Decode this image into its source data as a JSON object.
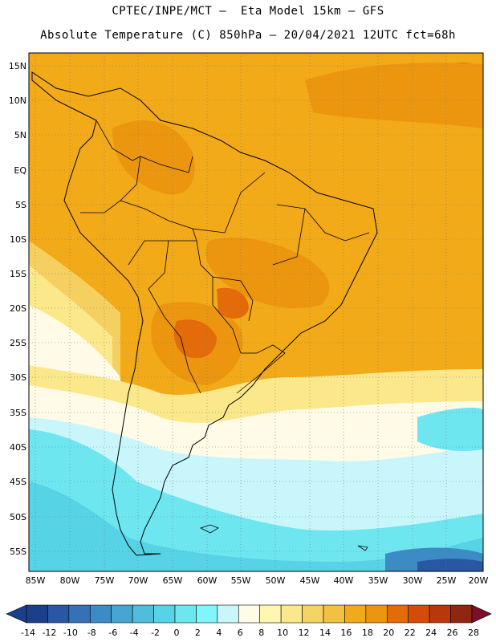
{
  "header": {
    "line1": "CPTEC/INPE/MCT –  Eta Model 15km – GFS",
    "line2": "Absolute Temperature (C) 850hPa – 20/04/2021 12UTC fct=68h"
  },
  "axes": {
    "lat_labels": [
      "15N",
      "10N",
      "5N",
      "EQ",
      "5S",
      "10S",
      "15S",
      "20S",
      "25S",
      "30S",
      "35S",
      "40S",
      "45S",
      "50S",
      "55S"
    ],
    "lon_labels": [
      "85W",
      "80W",
      "75W",
      "70W",
      "65W",
      "60W",
      "55W",
      "50W",
      "45W",
      "40W",
      "35W",
      "30W",
      "25W",
      "20W"
    ]
  },
  "colorbar": {
    "labels": [
      "-14",
      "-12",
      "-10",
      "-8",
      "-6",
      "-4",
      "-2",
      "0",
      "2",
      "4",
      "6",
      "8",
      "10",
      "12",
      "14",
      "16",
      "18",
      "20",
      "22",
      "24",
      "26",
      "28"
    ],
    "colors": [
      "#1c3f8c",
      "#2a57a4",
      "#3471b5",
      "#3c8bc4",
      "#47a5d1",
      "#4fbddb",
      "#57d3e6",
      "#6ee6f0",
      "#7ff6f8",
      "#c9f6fb",
      "#fffbe6",
      "#fff7b0",
      "#fbe88a",
      "#f5d466",
      "#f2c042",
      "#f0aa1a",
      "#ec9610",
      "#e46b0a",
      "#d54c0a",
      "#b8380c",
      "#8f2611"
    ]
  }
}
